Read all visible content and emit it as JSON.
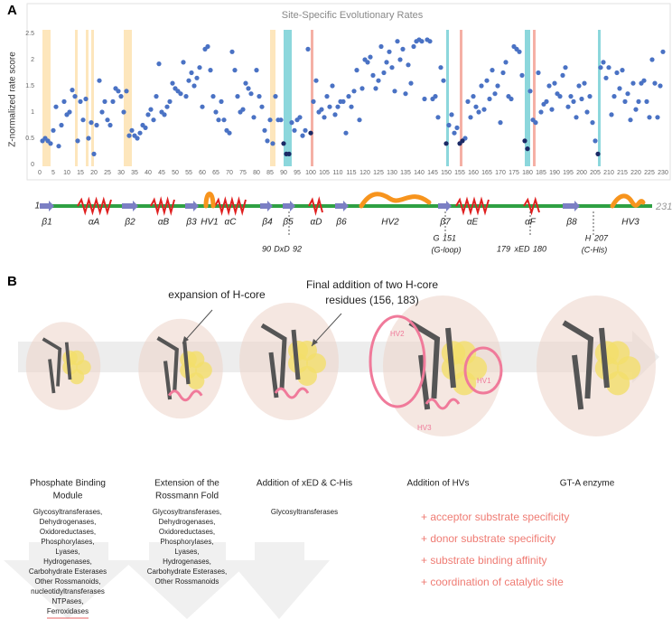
{
  "panel_labels": [
    "A",
    "B"
  ],
  "chart_data": {
    "type": "scatter",
    "title": "Site-Specific Evolutionary Rates",
    "y_label": "Z-normalized rate score",
    "xlim": [
      0,
      232
    ],
    "ylim": [
      0,
      2.5
    ],
    "xticks": [
      0,
      5,
      10,
      15,
      20,
      25,
      30,
      35,
      40,
      45,
      50,
      55,
      60,
      65,
      70,
      75,
      80,
      85,
      90,
      95,
      100,
      105,
      110,
      115,
      120,
      125,
      130,
      135,
      140,
      145,
      150,
      155,
      160,
      165,
      170,
      175,
      180,
      185,
      190,
      195,
      200,
      205,
      210,
      215,
      220,
      225,
      230
    ],
    "yticks": [
      0,
      0.5,
      1,
      1.5,
      2,
      2.5
    ],
    "grid": false,
    "highlight_regions": [
      {
        "start": 1,
        "end": 4,
        "color": "#fde3b5"
      },
      {
        "start": 13,
        "end": 14,
        "color": "#fde3b5"
      },
      {
        "start": 17,
        "end": 18,
        "color": "#fde3b5"
      },
      {
        "start": 19,
        "end": 20,
        "color": "#fde3b5"
      },
      {
        "start": 31,
        "end": 34,
        "color": "#fde3b5"
      },
      {
        "start": 85,
        "end": 87,
        "color": "#fde3b5"
      },
      {
        "start": 90,
        "end": 93,
        "color": "#7fd3d8"
      },
      {
        "start": 150,
        "end": 151,
        "color": "#7fd3d8"
      },
      {
        "start": 179,
        "end": 181,
        "color": "#7fd3d8"
      },
      {
        "start": 206,
        "end": 207,
        "color": "#7fd3d8"
      },
      {
        "start": 100,
        "end": 101,
        "color": "#f4a79b"
      },
      {
        "start": 155,
        "end": 156,
        "color": "#f4a79b"
      },
      {
        "start": 182,
        "end": 183,
        "color": "#f4a79b"
      }
    ],
    "series": [
      {
        "color": "#4a72c4",
        "x": [
          1,
          2,
          3,
          4,
          5,
          6,
          7,
          8,
          9,
          10,
          11,
          12,
          13,
          14,
          15,
          16,
          17,
          18,
          19,
          20,
          21,
          22,
          23,
          24,
          25,
          26,
          27,
          28,
          29,
          30,
          31,
          32,
          33,
          34,
          35,
          36,
          37,
          38,
          39,
          40,
          41,
          42,
          43,
          44,
          45,
          46,
          47,
          48,
          49,
          50,
          51,
          52,
          53,
          54,
          55,
          56,
          57,
          58,
          59,
          60,
          61,
          62,
          63,
          64,
          65,
          66,
          67,
          68,
          69,
          70,
          71,
          72,
          73,
          74,
          75,
          76,
          77,
          78,
          79,
          80,
          81,
          82,
          83,
          84,
          85,
          86,
          87,
          88,
          89,
          93,
          94,
          95,
          96,
          97,
          98,
          99,
          101,
          102,
          103,
          104,
          105,
          106,
          107,
          108,
          109,
          110,
          111,
          112,
          113,
          114,
          115,
          116,
          117,
          118,
          119,
          120,
          121,
          122,
          123,
          124,
          125,
          126,
          127,
          128,
          129,
          130,
          131,
          132,
          133,
          134,
          135,
          136,
          137,
          138,
          139,
          140,
          141,
          142,
          143,
          144,
          145,
          146,
          147,
          148,
          149,
          151,
          152,
          153,
          154,
          157,
          158,
          159,
          160,
          161,
          162,
          163,
          164,
          165,
          166,
          167,
          168,
          169,
          170,
          171,
          172,
          173,
          174,
          175,
          176,
          177,
          178,
          181,
          182,
          183,
          184,
          185,
          186,
          187,
          188,
          189,
          190,
          191,
          192,
          193,
          194,
          195,
          196,
          197,
          198,
          199,
          200,
          201,
          202,
          203,
          204,
          205,
          207,
          208,
          209,
          210,
          211,
          212,
          213,
          214,
          215,
          216,
          217,
          218,
          219,
          220,
          221,
          222,
          223,
          224,
          225,
          226,
          227,
          228,
          229,
          230
        ],
        "values": [
          0.45,
          0.5,
          0.45,
          0.4,
          0.65,
          1.1,
          0.35,
          0.75,
          1.2,
          0.95,
          1.0,
          1.42,
          1.3,
          0.45,
          1.2,
          0.85,
          1.25,
          0.5,
          0.8,
          0.2,
          0.75,
          1.6,
          1.0,
          1.2,
          0.85,
          0.75,
          1.2,
          1.45,
          1.4,
          1.3,
          1.0,
          1.4,
          0.55,
          0.65,
          0.55,
          0.5,
          0.6,
          0.75,
          0.7,
          0.95,
          1.05,
          0.85,
          1.3,
          1.92,
          1.0,
          0.95,
          1.1,
          1.2,
          1.55,
          1.45,
          1.4,
          1.35,
          1.95,
          1.3,
          1.6,
          1.75,
          1.5,
          1.65,
          1.85,
          1.1,
          2.2,
          2.25,
          1.8,
          1.3,
          1.0,
          0.85,
          1.2,
          0.85,
          0.65,
          0.6,
          2.15,
          1.8,
          1.3,
          1.0,
          1.05,
          1.55,
          1.45,
          1.35,
          0.9,
          1.8,
          1.3,
          1.1,
          0.65,
          0.45,
          0.85,
          0.4,
          1.3,
          0.85,
          0.85,
          0.8,
          0.65,
          0.85,
          0.9,
          0.55,
          0.65,
          2.2,
          1.2,
          1.6,
          1.0,
          1.05,
          0.9,
          1.3,
          1.1,
          1.5,
          0.95,
          1.1,
          1.2,
          1.2,
          0.6,
          1.3,
          1.1,
          1.4,
          1.8,
          0.85,
          1.45,
          2.0,
          1.95,
          2.05,
          1.7,
          1.45,
          1.6,
          2.25,
          1.75,
          1.95,
          2.15,
          1.85,
          1.4,
          2.35,
          2.0,
          2.2,
          1.35,
          1.9,
          1.55,
          2.25,
          2.35,
          2.38,
          2.35,
          1.25,
          2.38,
          2.35,
          1.25,
          1.3,
          0.9,
          1.85,
          1.6,
          0.75,
          0.95,
          0.6,
          0.7,
          0.5,
          1.2,
          0.9,
          1.3,
          1.1,
          1.0,
          1.5,
          1.05,
          1.6,
          1.25,
          1.8,
          1.35,
          1.5,
          0.8,
          1.75,
          1.95,
          1.3,
          1.25,
          2.25,
          2.2,
          2.15,
          1.7,
          1.4,
          0.85,
          0.8,
          1.75,
          1.0,
          1.15,
          1.2,
          1.5,
          1.05,
          1.55,
          1.35,
          1.3,
          1.7,
          1.85,
          1.1,
          1.3,
          1.2,
          0.9,
          1.5,
          1.25,
          1.55,
          1.0,
          1.3,
          0.8,
          0.45,
          1.85,
          1.95,
          1.65,
          1.85,
          0.95,
          1.3,
          1.75,
          1.45,
          1.8,
          1.2,
          1.35,
          0.85,
          1.55,
          1.05,
          1.2,
          1.55,
          1.6,
          1.2,
          0.9,
          2.0,
          1.55,
          0.9,
          1.5,
          2.15
        ]
      },
      {
        "color": "#1b2a66",
        "x": [
          90,
          91,
          92,
          100,
          150,
          155,
          156,
          179,
          180,
          206
        ],
        "values": [
          0.4,
          0.2,
          0.2,
          0.6,
          0.4,
          0.4,
          0.45,
          0.45,
          0.3,
          0.2
        ]
      }
    ]
  },
  "track": {
    "start": "1",
    "end": "231",
    "labels": [
      "β1",
      "αA",
      "β2",
      "αB",
      "β3",
      "HV1",
      "αC",
      "β4",
      "β5",
      "αD",
      "β6",
      "HV2",
      "β7",
      "αE",
      "αF",
      "β8",
      "HV3"
    ],
    "motifs": [
      [
        "90",
        "DxD",
        "92"
      ],
      [
        "G",
        "151",
        "(G-loop)"
      ],
      [
        "179",
        "xED",
        "180"
      ],
      [
        "H",
        "207",
        "(C-His)"
      ]
    ]
  },
  "panel_b": {
    "annotations": [
      "expansion of H-core",
      "Final addition of two H-core",
      "residues (156, 183)"
    ],
    "hv_labels": [
      "HV2",
      "HV1",
      "HV3"
    ],
    "stages": [
      {
        "title": [
          "Phosphate Binding",
          "Module"
        ],
        "families": [
          "Glycosyltransferases,",
          "Dehydrogenases,",
          "Oxidoreductases,",
          "Phosphorylases,",
          "Lyases,",
          "Hydrogenases,",
          "Carbohydrate Esterases",
          "Other Rossmanoids,",
          "nucleotidyltransferases",
          "NTPases,",
          "Ferroxidases"
        ]
      },
      {
        "title": [
          "Extension of the",
          "Rossmann Fold"
        ],
        "families": [
          "Glycosyltransferases,",
          "Dehydrogenases,",
          "Oxidoreductases,",
          "Phosphorylases,",
          "Lyases,",
          "Hydrogenases,",
          "Carbohydrate Esterases,",
          "Other Rossmanoids"
        ]
      },
      {
        "title": [
          "Addition of xED & C-His"
        ],
        "families": [
          "Glycosyltransferases"
        ]
      },
      {
        "title": [
          "Addition of HVs"
        ],
        "families": []
      },
      {
        "title": [
          "GT-A enzyme"
        ],
        "families": []
      }
    ],
    "gains": [
      "+ acceptor substrate specificity",
      "+ donor substrate specificity",
      "+ substrate binding affinity",
      "+ coordination of catalytic site"
    ]
  }
}
